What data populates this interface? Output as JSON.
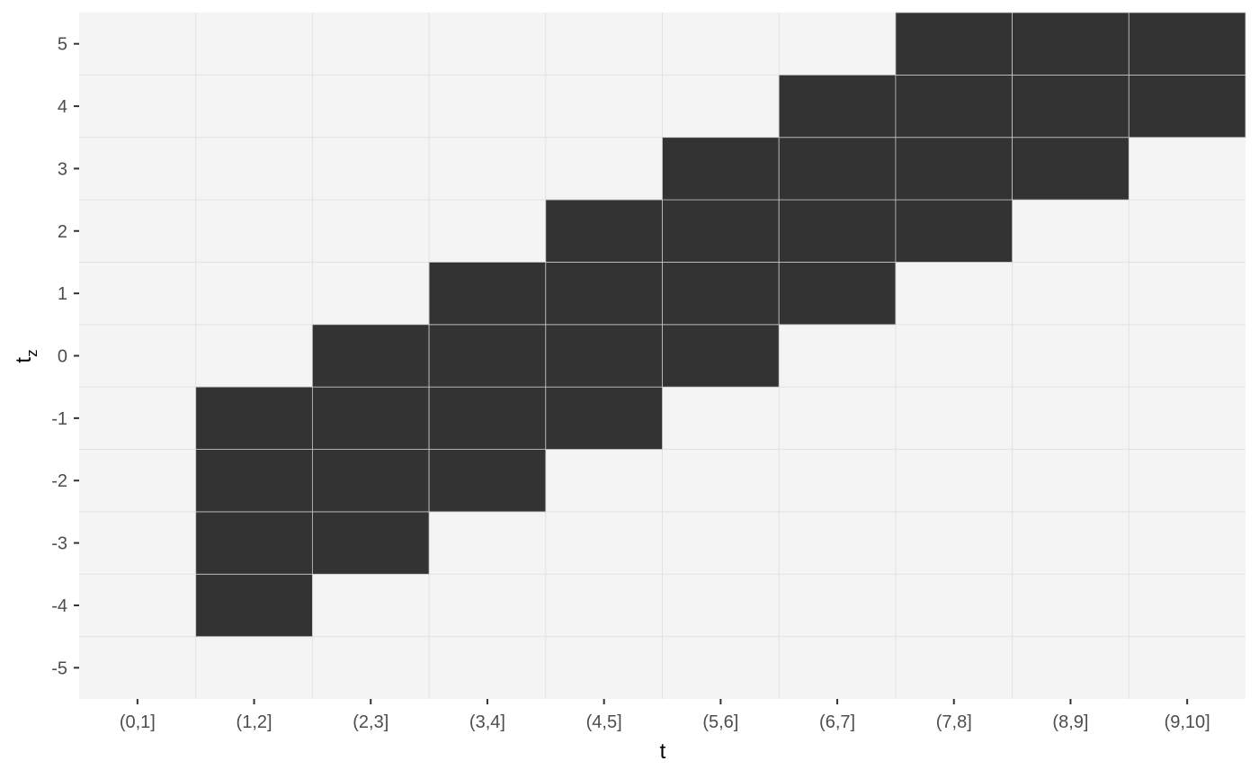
{
  "chart_data": {
    "type": "heatmap",
    "title": "",
    "xlabel": "t",
    "ylabel": {
      "main": "t",
      "subscript": "z"
    },
    "x_categories": [
      "(0,1]",
      "(1,2]",
      "(2,3]",
      "(3,4]",
      "(4,5]",
      "(5,6]",
      "(6,7]",
      "(7,8]",
      "(8,9]",
      "(9,10]"
    ],
    "y_values": [
      -5,
      -4,
      -3,
      -2,
      -1,
      0,
      1,
      2,
      3,
      4,
      5
    ],
    "y_tick_labels": [
      "-5",
      "-4",
      "-3",
      "-2",
      "-1",
      "0",
      "1",
      "2",
      "3",
      "4",
      "5"
    ],
    "filled_cells": [
      {
        "x": "(1,2]",
        "y": -4
      },
      {
        "x": "(1,2]",
        "y": -3
      },
      {
        "x": "(1,2]",
        "y": -2
      },
      {
        "x": "(1,2]",
        "y": -1
      },
      {
        "x": "(2,3]",
        "y": -3
      },
      {
        "x": "(2,3]",
        "y": -2
      },
      {
        "x": "(2,3]",
        "y": -1
      },
      {
        "x": "(2,3]",
        "y": 0
      },
      {
        "x": "(3,4]",
        "y": -2
      },
      {
        "x": "(3,4]",
        "y": -1
      },
      {
        "x": "(3,4]",
        "y": 0
      },
      {
        "x": "(3,4]",
        "y": 1
      },
      {
        "x": "(4,5]",
        "y": -1
      },
      {
        "x": "(4,5]",
        "y": 0
      },
      {
        "x": "(4,5]",
        "y": 1
      },
      {
        "x": "(4,5]",
        "y": 2
      },
      {
        "x": "(5,6]",
        "y": 0
      },
      {
        "x": "(5,6]",
        "y": 1
      },
      {
        "x": "(5,6]",
        "y": 2
      },
      {
        "x": "(5,6]",
        "y": 3
      },
      {
        "x": "(6,7]",
        "y": 1
      },
      {
        "x": "(6,7]",
        "y": 2
      },
      {
        "x": "(6,7]",
        "y": 3
      },
      {
        "x": "(6,7]",
        "y": 4
      },
      {
        "x": "(7,8]",
        "y": 2
      },
      {
        "x": "(7,8]",
        "y": 3
      },
      {
        "x": "(7,8]",
        "y": 4
      },
      {
        "x": "(7,8]",
        "y": 5
      },
      {
        "x": "(8,9]",
        "y": 3
      },
      {
        "x": "(8,9]",
        "y": 4
      },
      {
        "x": "(8,9]",
        "y": 5
      },
      {
        "x": "(9,10]",
        "y": 4
      },
      {
        "x": "(9,10]",
        "y": 5
      }
    ],
    "colors": {
      "fill": "#333333",
      "panel_background": "#f4f4f4",
      "grid": "#e2e2e2",
      "tile_border": "#c8c8c8",
      "tick_label": "#4d4d4d"
    },
    "grid": true,
    "legend": "none"
  }
}
